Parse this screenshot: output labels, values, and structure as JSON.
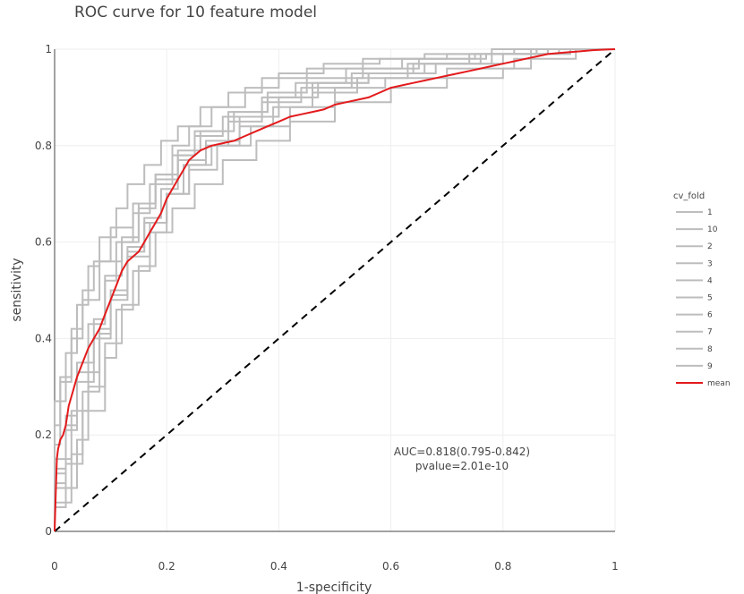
{
  "chart_data": {
    "type": "line",
    "title": "ROC curve for 10 feature model",
    "xlabel": "1-specificity",
    "ylabel": "sensitivity",
    "xlim": [
      0,
      1
    ],
    "ylim": [
      0,
      1
    ],
    "xticks": [
      0,
      0.2,
      0.4,
      0.6,
      0.8,
      1
    ],
    "xtick_labels": [
      "0",
      "0.2",
      "0.4",
      "0.6",
      "0.8",
      "1"
    ],
    "yticks": [
      0,
      0.2,
      0.4,
      0.6,
      0.8,
      1
    ],
    "ytick_labels": [
      "0",
      "0.2",
      "0.4",
      "0.6",
      "0.8",
      "1"
    ],
    "grid": true,
    "legend": {
      "title": "cv_fold",
      "placement": "right",
      "entries": [
        "1",
        "10",
        "2",
        "3",
        "4",
        "5",
        "6",
        "7",
        "8",
        "9",
        "mean"
      ]
    },
    "colors": {
      "fold": "#bdbdbd",
      "mean": "#e31a1c",
      "diagonal": "#000000"
    },
    "annotation": [
      "AUC=0.818(0.795-0.842)",
      "pvalue=2.01e-10"
    ],
    "diagonal": {
      "x": [
        0,
        1
      ],
      "y": [
        0,
        1
      ]
    },
    "series": [
      {
        "name": "1",
        "x": [
          0,
          0,
          0.03,
          0.03,
          0.05,
          0.05,
          0.08,
          0.08,
          0.1,
          0.1,
          0.13,
          0.13,
          0.16,
          0.16,
          0.19,
          0.19,
          0.22,
          0.22,
          0.25,
          0.25,
          0.3,
          0.3,
          0.37,
          0.37,
          0.43,
          0.43,
          0.52,
          0.52,
          0.62,
          0.62,
          0.75,
          0.75,
          0.86,
          0.86,
          1
        ],
        "y": [
          0,
          0.06,
          0.06,
          0.16,
          0.16,
          0.29,
          0.29,
          0.41,
          0.41,
          0.49,
          0.49,
          0.59,
          0.59,
          0.65,
          0.65,
          0.71,
          0.71,
          0.78,
          0.78,
          0.82,
          0.82,
          0.86,
          0.86,
          0.9,
          0.9,
          0.93,
          0.93,
          0.96,
          0.96,
          0.98,
          0.98,
          0.99,
          0.99,
          1,
          1
        ]
      },
      {
        "name": "10",
        "x": [
          0,
          0,
          0.02,
          0.02,
          0.04,
          0.04,
          0.07,
          0.07,
          0.09,
          0.09,
          0.12,
          0.12,
          0.15,
          0.15,
          0.18,
          0.18,
          0.21,
          0.21,
          0.24,
          0.24,
          0.28,
          0.28,
          0.34,
          0.34,
          0.4,
          0.4,
          0.48,
          0.48,
          0.58,
          0.58,
          0.7,
          0.7,
          0.82,
          0.82,
          1
        ],
        "y": [
          0,
          0.12,
          0.12,
          0.24,
          0.24,
          0.35,
          0.35,
          0.44,
          0.44,
          0.53,
          0.53,
          0.6,
          0.6,
          0.68,
          0.68,
          0.74,
          0.74,
          0.8,
          0.8,
          0.84,
          0.84,
          0.88,
          0.88,
          0.92,
          0.92,
          0.95,
          0.95,
          0.97,
          0.97,
          0.98,
          0.98,
          0.99,
          0.99,
          1,
          1
        ]
      },
      {
        "name": "2",
        "x": [
          0,
          0,
          0.01,
          0.01,
          0.03,
          0.03,
          0.05,
          0.05,
          0.07,
          0.07,
          0.1,
          0.1,
          0.14,
          0.14,
          0.18,
          0.18,
          0.22,
          0.22,
          0.27,
          0.27,
          0.33,
          0.33,
          0.4,
          0.4,
          0.47,
          0.47,
          0.56,
          0.56,
          0.66,
          0.66,
          0.78,
          0.78,
          0.9,
          0.9,
          1
        ],
        "y": [
          0,
          0.18,
          0.18,
          0.31,
          0.31,
          0.42,
          0.42,
          0.5,
          0.5,
          0.56,
          0.56,
          0.63,
          0.63,
          0.68,
          0.68,
          0.73,
          0.73,
          0.77,
          0.77,
          0.81,
          0.81,
          0.86,
          0.86,
          0.9,
          0.9,
          0.93,
          0.93,
          0.95,
          0.95,
          0.97,
          0.97,
          0.99,
          0.99,
          1,
          1
        ]
      },
      {
        "name": "3",
        "x": [
          0,
          0,
          0.02,
          0.02,
          0.05,
          0.05,
          0.09,
          0.09,
          0.11,
          0.11,
          0.14,
          0.14,
          0.17,
          0.17,
          0.2,
          0.2,
          0.23,
          0.23,
          0.27,
          0.27,
          0.31,
          0.31,
          0.37,
          0.37,
          0.44,
          0.44,
          0.53,
          0.53,
          0.64,
          0.64,
          0.76,
          0.76,
          0.88,
          0.88,
          1
        ],
        "y": [
          0,
          0.05,
          0.05,
          0.14,
          0.14,
          0.25,
          0.25,
          0.36,
          0.36,
          0.46,
          0.46,
          0.54,
          0.54,
          0.62,
          0.62,
          0.7,
          0.7,
          0.76,
          0.76,
          0.8,
          0.8,
          0.85,
          0.85,
          0.89,
          0.89,
          0.92,
          0.92,
          0.95,
          0.95,
          0.97,
          0.97,
          0.99,
          0.99,
          1,
          1
        ]
      },
      {
        "name": "4",
        "x": [
          0,
          0,
          0.04,
          0.04,
          0.06,
          0.06,
          0.09,
          0.09,
          0.12,
          0.12,
          0.15,
          0.15,
          0.18,
          0.18,
          0.21,
          0.21,
          0.25,
          0.25,
          0.3,
          0.3,
          0.36,
          0.36,
          0.42,
          0.42,
          0.5,
          0.5,
          0.6,
          0.6,
          0.7,
          0.7,
          0.8,
          0.8,
          0.85,
          0.85,
          1
        ],
        "y": [
          0,
          0.09,
          0.09,
          0.19,
          0.19,
          0.3,
          0.3,
          0.39,
          0.39,
          0.47,
          0.47,
          0.55,
          0.55,
          0.62,
          0.62,
          0.67,
          0.67,
          0.72,
          0.72,
          0.77,
          0.77,
          0.81,
          0.81,
          0.85,
          0.85,
          0.89,
          0.89,
          0.92,
          0.92,
          0.94,
          0.94,
          0.96,
          0.96,
          1,
          1
        ]
      },
      {
        "name": "5",
        "x": [
          0,
          0,
          0.02,
          0.02,
          0.04,
          0.04,
          0.06,
          0.06,
          0.08,
          0.08,
          0.11,
          0.11,
          0.13,
          0.13,
          0.16,
          0.16,
          0.19,
          0.19,
          0.22,
          0.22,
          0.26,
          0.26,
          0.31,
          0.31,
          0.37,
          0.37,
          0.45,
          0.45,
          0.55,
          0.55,
          0.66,
          0.66,
          0.78,
          0.78,
          1
        ],
        "y": [
          0,
          0.27,
          0.27,
          0.37,
          0.37,
          0.47,
          0.47,
          0.55,
          0.55,
          0.61,
          0.61,
          0.67,
          0.67,
          0.72,
          0.72,
          0.76,
          0.76,
          0.81,
          0.81,
          0.84,
          0.84,
          0.88,
          0.88,
          0.91,
          0.91,
          0.94,
          0.94,
          0.96,
          0.96,
          0.98,
          0.98,
          0.99,
          0.99,
          1,
          1
        ]
      },
      {
        "name": "6",
        "x": [
          0,
          0,
          0.03,
          0.03,
          0.06,
          0.06,
          0.08,
          0.08,
          0.1,
          0.1,
          0.13,
          0.13,
          0.16,
          0.16,
          0.2,
          0.2,
          0.24,
          0.24,
          0.28,
          0.28,
          0.33,
          0.33,
          0.39,
          0.39,
          0.46,
          0.46,
          0.54,
          0.54,
          0.63,
          0.63,
          0.74,
          0.74,
          0.86,
          0.86,
          1
        ],
        "y": [
          0,
          0.15,
          0.15,
          0.25,
          0.25,
          0.33,
          0.33,
          0.42,
          0.42,
          0.5,
          0.5,
          0.58,
          0.58,
          0.64,
          0.64,
          0.7,
          0.7,
          0.76,
          0.76,
          0.8,
          0.8,
          0.84,
          0.84,
          0.88,
          0.88,
          0.91,
          0.91,
          0.94,
          0.94,
          0.97,
          0.97,
          0.99,
          0.99,
          1,
          1
        ]
      },
      {
        "name": "7",
        "x": [
          0,
          0,
          0.01,
          0.01,
          0.03,
          0.03,
          0.05,
          0.05,
          0.08,
          0.08,
          0.12,
          0.12,
          0.15,
          0.15,
          0.18,
          0.18,
          0.22,
          0.22,
          0.26,
          0.26,
          0.32,
          0.32,
          0.38,
          0.38,
          0.45,
          0.45,
          0.55,
          0.55,
          0.65,
          0.65,
          0.77,
          0.77,
          0.88,
          0.88,
          1
        ],
        "y": [
          0,
          0.22,
          0.22,
          0.32,
          0.32,
          0.4,
          0.4,
          0.48,
          0.48,
          0.56,
          0.56,
          0.61,
          0.61,
          0.67,
          0.67,
          0.74,
          0.74,
          0.79,
          0.79,
          0.83,
          0.83,
          0.87,
          0.87,
          0.91,
          0.91,
          0.94,
          0.94,
          0.96,
          0.96,
          0.98,
          0.98,
          0.99,
          0.99,
          1,
          1
        ]
      },
      {
        "name": "8",
        "x": [
          0,
          0,
          0.02,
          0.02,
          0.04,
          0.04,
          0.06,
          0.06,
          0.09,
          0.09,
          0.11,
          0.11,
          0.14,
          0.14,
          0.17,
          0.17,
          0.21,
          0.21,
          0.25,
          0.25,
          0.31,
          0.31,
          0.38,
          0.38,
          0.46,
          0.46,
          0.56,
          0.56,
          0.68,
          0.68,
          0.8,
          0.8,
          0.92,
          0.92,
          1
        ],
        "y": [
          0,
          0.1,
          0.1,
          0.21,
          0.21,
          0.33,
          0.33,
          0.43,
          0.43,
          0.52,
          0.52,
          0.6,
          0.6,
          0.66,
          0.66,
          0.72,
          0.72,
          0.78,
          0.78,
          0.83,
          0.83,
          0.87,
          0.87,
          0.9,
          0.9,
          0.93,
          0.93,
          0.95,
          0.95,
          0.97,
          0.97,
          0.99,
          0.99,
          1,
          1
        ]
      },
      {
        "name": "9",
        "x": [
          0,
          0,
          0.02,
          0.02,
          0.04,
          0.04,
          0.07,
          0.07,
          0.1,
          0.1,
          0.13,
          0.13,
          0.17,
          0.17,
          0.2,
          0.2,
          0.24,
          0.24,
          0.29,
          0.29,
          0.35,
          0.35,
          0.42,
          0.42,
          0.5,
          0.5,
          0.59,
          0.59,
          0.7,
          0.7,
          0.82,
          0.82,
          0.93,
          0.93,
          1
        ],
        "y": [
          0,
          0.13,
          0.13,
          0.22,
          0.22,
          0.31,
          0.31,
          0.4,
          0.4,
          0.48,
          0.48,
          0.57,
          0.57,
          0.64,
          0.64,
          0.7,
          0.7,
          0.75,
          0.75,
          0.8,
          0.8,
          0.84,
          0.84,
          0.88,
          0.88,
          0.92,
          0.92,
          0.94,
          0.94,
          0.96,
          0.96,
          0.98,
          0.98,
          1,
          1
        ]
      },
      {
        "name": "mean",
        "x": [
          0,
          0.002,
          0.004,
          0.006,
          0.01,
          0.015,
          0.02,
          0.025,
          0.03,
          0.035,
          0.04,
          0.05,
          0.06,
          0.07,
          0.08,
          0.09,
          0.1,
          0.11,
          0.12,
          0.13,
          0.14,
          0.15,
          0.16,
          0.17,
          0.18,
          0.19,
          0.2,
          0.21,
          0.22,
          0.23,
          0.24,
          0.26,
          0.28,
          0.3,
          0.32,
          0.34,
          0.36,
          0.38,
          0.4,
          0.42,
          0.44,
          0.46,
          0.48,
          0.5,
          0.52,
          0.54,
          0.56,
          0.58,
          0.6,
          0.62,
          0.64,
          0.66,
          0.68,
          0.7,
          0.72,
          0.74,
          0.76,
          0.78,
          0.8,
          0.82,
          0.84,
          0.86,
          0.88,
          0.9,
          0.92,
          0.94,
          0.96,
          0.98,
          1
        ],
        "y": [
          0,
          0.08,
          0.15,
          0.17,
          0.19,
          0.2,
          0.22,
          0.26,
          0.28,
          0.3,
          0.32,
          0.35,
          0.38,
          0.4,
          0.42,
          0.45,
          0.48,
          0.51,
          0.54,
          0.56,
          0.57,
          0.58,
          0.6,
          0.62,
          0.64,
          0.66,
          0.69,
          0.71,
          0.73,
          0.75,
          0.77,
          0.79,
          0.8,
          0.805,
          0.81,
          0.82,
          0.83,
          0.84,
          0.85,
          0.86,
          0.865,
          0.87,
          0.875,
          0.885,
          0.89,
          0.895,
          0.9,
          0.91,
          0.92,
          0.925,
          0.93,
          0.935,
          0.94,
          0.945,
          0.95,
          0.955,
          0.96,
          0.965,
          0.97,
          0.975,
          0.98,
          0.985,
          0.99,
          0.992,
          0.994,
          0.996,
          0.998,
          0.999,
          1
        ]
      }
    ]
  }
}
